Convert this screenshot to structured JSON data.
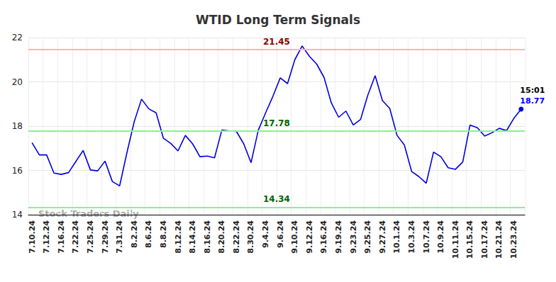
{
  "chart_data": {
    "type": "line",
    "title": "WTID Long Term Signals",
    "categories": [
      "7.10.24",
      null,
      "7.12.24",
      null,
      "7.16.24",
      null,
      "7.22.24",
      null,
      "7.25.24",
      null,
      "7.29.24",
      null,
      "7.31.24",
      null,
      "8.2.24",
      null,
      "8.6.24",
      null,
      "8.8.24",
      null,
      "8.12.24",
      null,
      "8.14.24",
      null,
      "8.16.24",
      null,
      "8.20.24",
      null,
      "8.22.24",
      null,
      "8.30.24",
      null,
      "9.4.24",
      null,
      "9.6.24",
      null,
      "9.10.24",
      null,
      "9.12.24",
      null,
      "9.16.24",
      null,
      "9.19.24",
      null,
      "9.23.24",
      null,
      "9.25.24",
      null,
      "9.27.24",
      null,
      "10.1.24",
      null,
      "10.3.24",
      null,
      "10.7.24",
      null,
      "10.9.24",
      null,
      "10.11.24",
      null,
      "10.15.24",
      null,
      "10.17.24",
      null,
      "10.21.24",
      null,
      "10.23.24",
      null
    ],
    "values": [
      17.25,
      16.7,
      16.7,
      15.88,
      15.82,
      15.9,
      16.4,
      16.9,
      16.02,
      15.98,
      16.42,
      15.5,
      15.3,
      16.8,
      18.2,
      19.22,
      18.78,
      18.6,
      17.45,
      17.22,
      16.88,
      17.58,
      17.2,
      16.62,
      16.65,
      16.57,
      17.82,
      17.78,
      17.76,
      17.2,
      16.35,
      17.82,
      18.6,
      19.35,
      20.18,
      19.92,
      21.0,
      21.62,
      21.15,
      20.8,
      20.2,
      19.05,
      18.4,
      18.68,
      18.05,
      18.3,
      19.4,
      20.28,
      19.15,
      18.8,
      17.58,
      17.15,
      15.95,
      15.72,
      15.42,
      16.83,
      16.62,
      16.12,
      16.05,
      16.38,
      18.05,
      17.93,
      17.55,
      17.7,
      17.9,
      17.8,
      18.35,
      18.77
    ],
    "color": "#0000dd",
    "ylim": [
      14,
      22
    ],
    "yticks": [
      14,
      16,
      18,
      20,
      22
    ],
    "grid": true,
    "hlines": [
      {
        "value": 21.45,
        "color": "#ffb3b3"
      },
      {
        "value": 17.78,
        "color": "#90ee90"
      },
      {
        "value": 14.34,
        "color": "#90ee90"
      }
    ],
    "last_point": {
      "time": "15:01",
      "value": 18.77
    },
    "annotations": {
      "watermark": "Stock Traders Daily"
    }
  }
}
